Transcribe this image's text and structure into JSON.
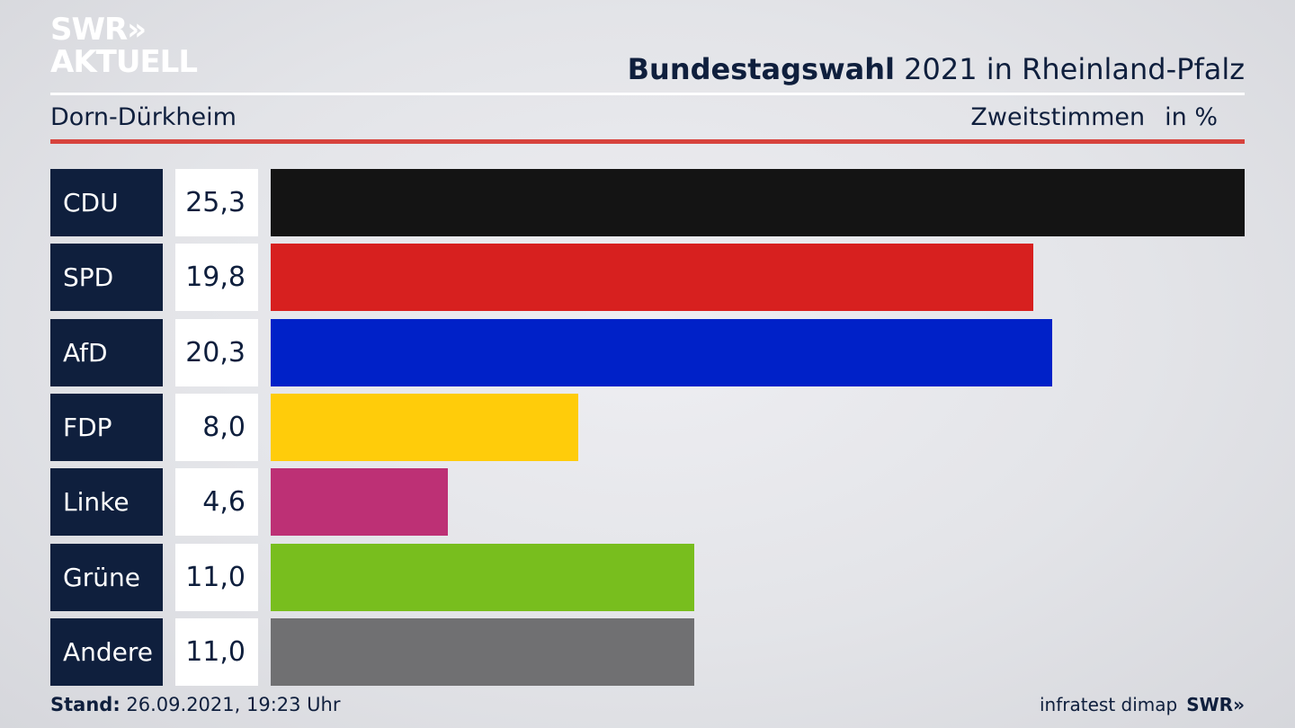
{
  "logo": {
    "line1": "SWR»",
    "line2": "AKTUELL"
  },
  "title": {
    "bold": "Bundestagswahl",
    "rest": " 2021 in Rheinland-Pfalz"
  },
  "subtitle": "Dorn-Dürkheim",
  "measure": {
    "label": "Zweitstimmen",
    "unit": "in %"
  },
  "chart_data": {
    "type": "bar",
    "orientation": "horizontal",
    "categories": [
      "CDU",
      "SPD",
      "AfD",
      "FDP",
      "Linke",
      "Grüne",
      "Andere"
    ],
    "values": [
      25.3,
      19.8,
      20.3,
      8.0,
      4.6,
      11.0,
      11.0
    ],
    "value_labels": [
      "25,3",
      "19,8",
      "20,3",
      "8,0",
      "4,6",
      "11,0",
      "11,0"
    ],
    "colors": [
      "#141414",
      "#d7201f",
      "#0021c8",
      "#ffcc0a",
      "#bd3075",
      "#78be1e",
      "#707072"
    ],
    "xlim": [
      0,
      25.3
    ]
  },
  "footer": {
    "stand_label": "Stand:",
    "stand_value": " 26.09.2021, 19:23 Uhr",
    "source": "infratest dimap",
    "brand": "SWR»"
  }
}
